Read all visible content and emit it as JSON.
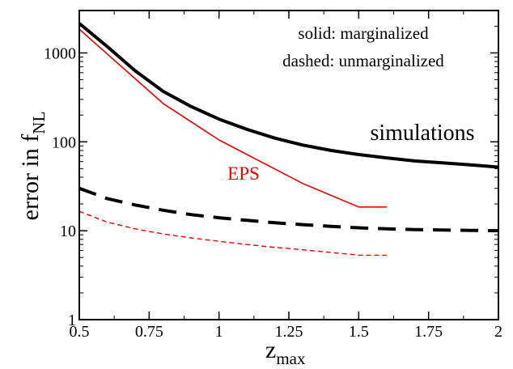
{
  "chart_data": {
    "type": "line",
    "xlabel": "z",
    "xlabel_sub": "max",
    "ylabel": "error in f",
    "ylabel_sub": "NL",
    "xlim": [
      0.5,
      2
    ],
    "ylim": [
      1,
      3000
    ],
    "yscale": "log",
    "x_ticks": [
      0.5,
      0.75,
      1,
      1.25,
      1.5,
      1.75,
      2
    ],
    "x_tick_labels": [
      "0.5",
      "0.75",
      "1",
      "1.25",
      "1.5",
      "1.75",
      "2"
    ],
    "y_ticks": [
      1,
      10,
      100,
      1000
    ],
    "y_tick_labels": [
      "1",
      "10",
      "100",
      "1000"
    ],
    "grid": false,
    "annotations": {
      "line1": "solid: marginalized",
      "line2": "dashed: unmarginalized",
      "simulations_label": "simulations",
      "eps_label": "EPS"
    },
    "series": [
      {
        "label_ref": "simulations_label",
        "style": "solid",
        "color": "#000000",
        "x": [
          0.5,
          0.6,
          0.7,
          0.8,
          0.9,
          1.0,
          1.1,
          1.2,
          1.3,
          1.4,
          1.5,
          1.6,
          1.7,
          1.8,
          1.9,
          2.0
        ],
        "y": [
          2150,
          1180,
          630,
          370,
          250,
          180,
          138,
          110,
          92,
          80,
          72,
          66,
          61,
          58,
          55,
          52
        ]
      },
      {
        "label_ref": "simulations_label",
        "style": "dashed",
        "color": "#000000",
        "x": [
          0.5,
          0.6,
          0.7,
          0.8,
          0.9,
          1.0,
          1.1,
          1.2,
          1.3,
          1.4,
          1.5,
          1.6,
          1.7,
          1.8,
          1.9,
          2.0
        ],
        "y": [
          30,
          23,
          19.5,
          17,
          15.2,
          14,
          13.1,
          12.3,
          11.7,
          11.2,
          10.8,
          10.5,
          10.3,
          10.2,
          10.1,
          10.0
        ]
      },
      {
        "label_ref": "eps_label",
        "style": "solid",
        "color": "#ee0000",
        "x": [
          0.5,
          0.8,
          1.0,
          1.3,
          1.5,
          1.6
        ],
        "y": [
          1850,
          270,
          105,
          34,
          18.5,
          18.5
        ]
      },
      {
        "label_ref": "eps_label",
        "style": "dashed",
        "color": "#ee0000",
        "x": [
          0.5,
          0.6,
          0.7,
          0.8,
          0.9,
          1.0,
          1.1,
          1.2,
          1.3,
          1.4,
          1.5,
          1.6
        ],
        "y": [
          16.5,
          12.5,
          10.5,
          9.2,
          8.3,
          7.6,
          7.0,
          6.5,
          6.1,
          5.7,
          5.3,
          5.3
        ]
      }
    ]
  }
}
